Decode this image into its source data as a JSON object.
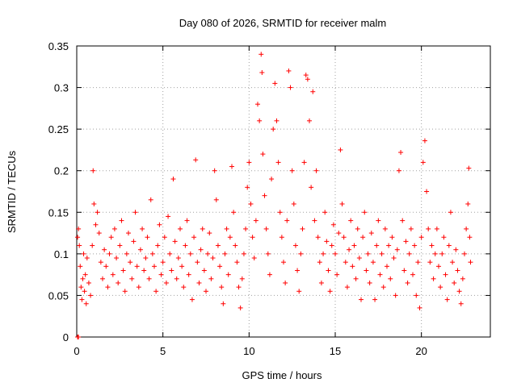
{
  "chart_data": {
    "type": "scatter",
    "title": "Day 080 of 2026, SRMTID for receiver malm",
    "xlabel": "GPS time / hours",
    "ylabel": "SRMTID / TECUs",
    "xlim": [
      0,
      24
    ],
    "ylim": [
      0,
      0.35
    ],
    "xticks": [
      0,
      5,
      10,
      15,
      20
    ],
    "xtick_labels": [
      "0",
      "5",
      "10",
      "15",
      "20"
    ],
    "yticks": [
      0,
      0.05,
      0.1,
      0.15,
      0.2,
      0.25,
      0.3,
      0.35
    ],
    "ytick_labels": [
      "0",
      "0.05",
      "0.1",
      "0.15",
      "0.2",
      "0.25",
      "0.3",
      "0.35"
    ],
    "grid": true,
    "marker": "+",
    "color": "#ff0000",
    "series": [
      {
        "name": "SRMTID",
        "points": [
          [
            0.05,
            0.0
          ],
          [
            0.1,
            0.0
          ],
          [
            0.05,
            0.12
          ],
          [
            0.1,
            0.13
          ],
          [
            0.15,
            0.11
          ],
          [
            0.2,
            0.085
          ],
          [
            0.25,
            0.06
          ],
          [
            0.3,
            0.045
          ],
          [
            0.35,
            0.07
          ],
          [
            0.4,
            0.1
          ],
          [
            0.45,
            0.055
          ],
          [
            0.5,
            0.075
          ],
          [
            0.55,
            0.04
          ],
          [
            0.6,
            0.095
          ],
          [
            0.7,
            0.065
          ],
          [
            0.8,
            0.05
          ],
          [
            0.9,
            0.11
          ],
          [
            0.95,
            0.2
          ],
          [
            1.0,
            0.16
          ],
          [
            1.1,
            0.135
          ],
          [
            1.2,
            0.15
          ],
          [
            1.3,
            0.125
          ],
          [
            1.4,
            0.09
          ],
          [
            1.5,
            0.07
          ],
          [
            1.6,
            0.105
          ],
          [
            1.7,
            0.085
          ],
          [
            1.8,
            0.06
          ],
          [
            1.9,
            0.1
          ],
          [
            2.0,
            0.12
          ],
          [
            2.1,
            0.075
          ],
          [
            2.2,
            0.13
          ],
          [
            2.3,
            0.095
          ],
          [
            2.4,
            0.065
          ],
          [
            2.5,
            0.11
          ],
          [
            2.6,
            0.14
          ],
          [
            2.7,
            0.08
          ],
          [
            2.8,
            0.055
          ],
          [
            2.9,
            0.1
          ],
          [
            3.0,
            0.125
          ],
          [
            3.1,
            0.09
          ],
          [
            3.2,
            0.07
          ],
          [
            3.3,
            0.115
          ],
          [
            3.4,
            0.15
          ],
          [
            3.5,
            0.085
          ],
          [
            3.6,
            0.06
          ],
          [
            3.7,
            0.105
          ],
          [
            3.8,
            0.13
          ],
          [
            3.9,
            0.08
          ],
          [
            4.0,
            0.095
          ],
          [
            4.1,
            0.12
          ],
          [
            4.2,
            0.07
          ],
          [
            4.3,
            0.165
          ],
          [
            4.4,
            0.1
          ],
          [
            4.5,
            0.085
          ],
          [
            4.6,
            0.055
          ],
          [
            4.7,
            0.11
          ],
          [
            4.8,
            0.135
          ],
          [
            4.9,
            0.075
          ],
          [
            5.0,
            0.09
          ],
          [
            5.1,
            0.12
          ],
          [
            5.2,
            0.065
          ],
          [
            5.3,
            0.145
          ],
          [
            5.4,
            0.1
          ],
          [
            5.5,
            0.08
          ],
          [
            5.6,
            0.19
          ],
          [
            5.7,
            0.115
          ],
          [
            5.8,
            0.07
          ],
          [
            5.9,
            0.095
          ],
          [
            6.0,
            0.13
          ],
          [
            6.1,
            0.085
          ],
          [
            6.2,
            0.06
          ],
          [
            6.3,
            0.11
          ],
          [
            6.4,
            0.14
          ],
          [
            6.5,
            0.075
          ],
          [
            6.6,
            0.1
          ],
          [
            6.7,
            0.045
          ],
          [
            6.8,
            0.12
          ],
          [
            6.9,
            0.213
          ],
          [
            7.0,
            0.09
          ],
          [
            7.1,
            0.065
          ],
          [
            7.2,
            0.105
          ],
          [
            7.3,
            0.13
          ],
          [
            7.4,
            0.08
          ],
          [
            7.5,
            0.055
          ],
          [
            7.6,
            0.1
          ],
          [
            7.7,
            0.125
          ],
          [
            7.8,
            0.07
          ],
          [
            7.9,
            0.095
          ],
          [
            8.0,
            0.2
          ],
          [
            8.1,
            0.165
          ],
          [
            8.2,
            0.11
          ],
          [
            8.3,
            0.085
          ],
          [
            8.4,
            0.06
          ],
          [
            8.5,
            0.04
          ],
          [
            8.6,
            0.1
          ],
          [
            8.7,
            0.13
          ],
          [
            8.8,
            0.075
          ],
          [
            8.9,
            0.12
          ],
          [
            9.0,
            0.205
          ],
          [
            9.1,
            0.15
          ],
          [
            9.2,
            0.11
          ],
          [
            9.3,
            0.09
          ],
          [
            9.4,
            0.06
          ],
          [
            9.5,
            0.035
          ],
          [
            9.6,
            0.07
          ],
          [
            9.7,
            0.1
          ],
          [
            9.8,
            0.13
          ],
          [
            9.9,
            0.18
          ],
          [
            10.0,
            0.21
          ],
          [
            10.1,
            0.16
          ],
          [
            10.2,
            0.12
          ],
          [
            10.3,
            0.095
          ],
          [
            10.4,
            0.14
          ],
          [
            10.5,
            0.28
          ],
          [
            10.6,
            0.26
          ],
          [
            10.7,
            0.34
          ],
          [
            10.75,
            0.318
          ],
          [
            10.8,
            0.22
          ],
          [
            10.9,
            0.17
          ],
          [
            11.0,
            0.13
          ],
          [
            11.1,
            0.1
          ],
          [
            11.2,
            0.075
          ],
          [
            11.3,
            0.19
          ],
          [
            11.4,
            0.25
          ],
          [
            11.5,
            0.305
          ],
          [
            11.6,
            0.26
          ],
          [
            11.7,
            0.21
          ],
          [
            11.8,
            0.15
          ],
          [
            11.9,
            0.12
          ],
          [
            12.0,
            0.09
          ],
          [
            12.1,
            0.065
          ],
          [
            12.2,
            0.14
          ],
          [
            12.3,
            0.32
          ],
          [
            12.4,
            0.3
          ],
          [
            12.5,
            0.2
          ],
          [
            12.6,
            0.16
          ],
          [
            12.7,
            0.11
          ],
          [
            12.8,
            0.08
          ],
          [
            12.9,
            0.055
          ],
          [
            13.0,
            0.1
          ],
          [
            13.1,
            0.13
          ],
          [
            13.2,
            0.21
          ],
          [
            13.3,
            0.315
          ],
          [
            13.4,
            0.31
          ],
          [
            13.5,
            0.26
          ],
          [
            13.6,
            0.18
          ],
          [
            13.7,
            0.295
          ],
          [
            13.8,
            0.14
          ],
          [
            13.9,
            0.2
          ],
          [
            14.0,
            0.12
          ],
          [
            14.1,
            0.09
          ],
          [
            14.2,
            0.065
          ],
          [
            14.3,
            0.1
          ],
          [
            14.4,
            0.15
          ],
          [
            14.5,
            0.115
          ],
          [
            14.6,
            0.08
          ],
          [
            14.7,
            0.055
          ],
          [
            14.8,
            0.11
          ],
          [
            14.9,
            0.135
          ],
          [
            15.0,
            0.1
          ],
          [
            15.1,
            0.075
          ],
          [
            15.2,
            0.125
          ],
          [
            15.3,
            0.225
          ],
          [
            15.4,
            0.16
          ],
          [
            15.5,
            0.12
          ],
          [
            15.6,
            0.09
          ],
          [
            15.7,
            0.06
          ],
          [
            15.8,
            0.105
          ],
          [
            15.9,
            0.14
          ],
          [
            16.0,
            0.085
          ],
          [
            16.1,
            0.11
          ],
          [
            16.2,
            0.07
          ],
          [
            16.3,
            0.13
          ],
          [
            16.4,
            0.095
          ],
          [
            16.5,
            0.045
          ],
          [
            16.6,
            0.12
          ],
          [
            16.7,
            0.15
          ],
          [
            16.8,
            0.08
          ],
          [
            16.9,
            0.1
          ],
          [
            17.0,
            0.065
          ],
          [
            17.1,
            0.125
          ],
          [
            17.2,
            0.09
          ],
          [
            17.3,
            0.045
          ],
          [
            17.4,
            0.11
          ],
          [
            17.5,
            0.14
          ],
          [
            17.6,
            0.075
          ],
          [
            17.7,
            0.1
          ],
          [
            17.8,
            0.06
          ],
          [
            17.9,
            0.13
          ],
          [
            18.0,
            0.085
          ],
          [
            18.1,
            0.11
          ],
          [
            18.2,
            0.07
          ],
          [
            18.3,
            0.12
          ],
          [
            18.4,
            0.095
          ],
          [
            18.5,
            0.05
          ],
          [
            18.6,
            0.105
          ],
          [
            18.7,
            0.2
          ],
          [
            18.8,
            0.222
          ],
          [
            18.9,
            0.14
          ],
          [
            19.0,
            0.08
          ],
          [
            19.1,
            0.115
          ],
          [
            19.2,
            0.065
          ],
          [
            19.3,
            0.1
          ],
          [
            19.4,
            0.13
          ],
          [
            19.5,
            0.075
          ],
          [
            19.6,
            0.11
          ],
          [
            19.7,
            0.05
          ],
          [
            19.8,
            0.09
          ],
          [
            19.9,
            0.035
          ],
          [
            20.0,
            0.12
          ],
          [
            20.1,
            0.21
          ],
          [
            20.2,
            0.236
          ],
          [
            20.3,
            0.175
          ],
          [
            20.4,
            0.13
          ],
          [
            20.5,
            0.09
          ],
          [
            20.6,
            0.11
          ],
          [
            20.7,
            0.07
          ],
          [
            20.8,
            0.1
          ],
          [
            20.9,
            0.13
          ],
          [
            21.0,
            0.085
          ],
          [
            21.1,
            0.06
          ],
          [
            21.2,
            0.1
          ],
          [
            21.3,
            0.12
          ],
          [
            21.4,
            0.075
          ],
          [
            21.5,
            0.045
          ],
          [
            21.6,
            0.11
          ],
          [
            21.7,
            0.15
          ],
          [
            21.8,
            0.09
          ],
          [
            21.9,
            0.065
          ],
          [
            22.0,
            0.105
          ],
          [
            22.1,
            0.08
          ],
          [
            22.2,
            0.055
          ],
          [
            22.3,
            0.04
          ],
          [
            22.4,
            0.07
          ],
          [
            22.5,
            0.1
          ],
          [
            22.6,
            0.13
          ],
          [
            22.7,
            0.16
          ],
          [
            22.75,
            0.203
          ],
          [
            22.8,
            0.12
          ],
          [
            22.85,
            0.09
          ]
        ]
      }
    ]
  }
}
